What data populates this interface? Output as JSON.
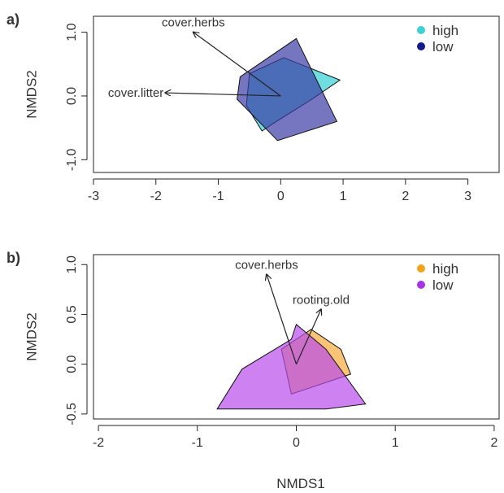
{
  "xlabel": "NMDS1",
  "chart_data": [
    {
      "panel_label": "a)",
      "type": "scatter",
      "xlim": [
        -3,
        3.5
      ],
      "ylim": [
        -1.2,
        1.25
      ],
      "xticks": [
        -3,
        -2,
        -1,
        0,
        1,
        2,
        3
      ],
      "yticks": [
        -1.0,
        0.0,
        1.0
      ],
      "xtick_labels": [
        "-3",
        "-2",
        "-1",
        "0",
        "1",
        "2",
        "3"
      ],
      "ytick_labels": [
        "-1.0",
        "0.0",
        "1.0"
      ],
      "ylabel": "NMDS2",
      "xlabel": "",
      "legend_position": "top-right",
      "series": [
        {
          "name": "high",
          "color": "#3fd0d4",
          "fill": "rgba(64,210,214,0.75)",
          "hull": [
            [
              -0.5,
              0.35
            ],
            [
              0.05,
              0.6
            ],
            [
              0.95,
              0.25
            ],
            [
              0.5,
              -0.05
            ],
            [
              -0.15,
              -0.45
            ],
            [
              -0.3,
              -0.55
            ],
            [
              -0.55,
              -0.15
            ]
          ]
        },
        {
          "name": "low",
          "color": "#151a8a",
          "fill": "rgba(60,60,165,0.7)",
          "hull": [
            [
              -0.65,
              0.3
            ],
            [
              0.25,
              0.9
            ],
            [
              0.9,
              -0.4
            ],
            [
              -0.05,
              -0.7
            ],
            [
              -0.7,
              -0.05
            ]
          ]
        }
      ],
      "vectors": [
        {
          "label": "cover.herbs",
          "x": -1.4,
          "y": 1.0
        },
        {
          "label": "cover.litter",
          "x": -1.85,
          "y": 0.05
        }
      ]
    },
    {
      "panel_label": "b)",
      "type": "scatter",
      "xlim": [
        -2.05,
        2.05
      ],
      "ylim": [
        -0.55,
        1.1
      ],
      "xticks": [
        -2,
        -1,
        0,
        1,
        2
      ],
      "yticks": [
        -0.5,
        0.0,
        0.5,
        1.0
      ],
      "xtick_labels": [
        "-2",
        "-1",
        "0",
        "1",
        "2"
      ],
      "ytick_labels": [
        "-0.5",
        "0.0",
        "0.5",
        "1.0"
      ],
      "ylabel": "NMDS2",
      "xlabel": "NMDS1",
      "legend_position": "top-right",
      "series": [
        {
          "name": "high",
          "color": "#f4a21c",
          "fill": "rgba(247,180,80,0.78)",
          "hull": [
            [
              -0.15,
              0.15
            ],
            [
              0.15,
              0.35
            ],
            [
              0.45,
              0.15
            ],
            [
              0.55,
              -0.1
            ],
            [
              -0.05,
              -0.3
            ]
          ]
        },
        {
          "name": "low",
          "color": "#a832e6",
          "fill": "rgba(185,75,235,0.7)",
          "hull": [
            [
              -0.8,
              -0.45
            ],
            [
              -0.55,
              -0.05
            ],
            [
              -0.05,
              0.25
            ],
            [
              0.0,
              0.4
            ],
            [
              0.3,
              0.15
            ],
            [
              0.7,
              -0.4
            ],
            [
              0.3,
              -0.45
            ]
          ]
        }
      ],
      "vectors": [
        {
          "label": "cover.herbs",
          "x": -0.3,
          "y": 0.9
        },
        {
          "label": "rooting.old",
          "x": 0.25,
          "y": 0.55
        }
      ]
    }
  ]
}
